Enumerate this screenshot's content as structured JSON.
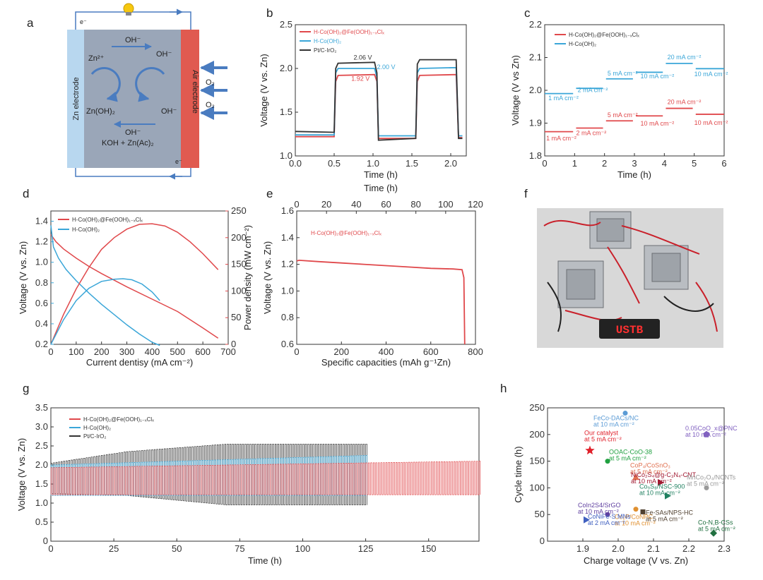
{
  "panels": {
    "a": "a",
    "b": "b",
    "c": "c",
    "d": "d",
    "e": "e",
    "f": "f",
    "g": "g",
    "h": "h"
  },
  "colors": {
    "red": "#e0484b",
    "blue": "#3aa6d8",
    "black": "#333333",
    "zn": "#b8d7ef",
    "air": "#e05a50",
    "electrolyte": "#9aa6b8",
    "arrow": "#4a7cc0"
  },
  "diagram": {
    "zn_electrode": "Zn electrode",
    "air_electrode": "Air electrode",
    "electron_top": "e⁻",
    "electron_bottom": "e⁻",
    "oh_top": "OH⁻",
    "oh_right_top": "OH⁻",
    "oh_right_bottom": "OH⁻",
    "oh_bottom": "OH⁻",
    "zn2": "Zn²⁺",
    "znoh2": "Zn(OH)₂",
    "electrolyte": "KOH + Zn(Ac)₂",
    "o2_top": "O₂",
    "o2_bottom": "O₂",
    "bulb_icon": "light-bulb-icon"
  },
  "photo": {
    "display_text": "USTB"
  },
  "chart_data": [
    {
      "panel": "b",
      "type": "line",
      "title": "",
      "xlabel": "Time (h)",
      "xlabel2": "Time (h)",
      "ylabel": "Voltage (V vs. Zn)",
      "xlim": [
        0,
        2.2
      ],
      "ylim": [
        1.0,
        2.5
      ],
      "xticks": [
        0.0,
        0.5,
        1.0,
        1.5,
        2.0
      ],
      "xticklabels": [
        "0.0",
        "0.5",
        "1.0",
        "1.5",
        "2.0"
      ],
      "yticks": [
        1.0,
        1.5,
        2.0,
        2.5
      ],
      "yticklabels": [
        "1.0",
        "1.5",
        "2.0",
        "2.5"
      ],
      "series": [
        {
          "name": "H-Co(OH)₂@Fe(OOH)₁₋ₓClₓ",
          "color": "#e0484b",
          "x": [
            0,
            0.5,
            0.52,
            0.55,
            1.02,
            1.05,
            1.07,
            1.55,
            1.57,
            1.6,
            2.07,
            2.1,
            2.15
          ],
          "y": [
            1.22,
            1.22,
            1.85,
            1.92,
            1.93,
            1.85,
            1.2,
            1.2,
            1.85,
            1.92,
            1.93,
            1.21,
            1.21
          ]
        },
        {
          "name": "H-Co(OH)₂",
          "color": "#3aa6d8",
          "x": [
            0,
            0.5,
            0.52,
            0.55,
            1.02,
            1.05,
            1.07,
            1.55,
            1.57,
            1.6,
            2.07,
            2.1,
            2.15
          ],
          "y": [
            1.24,
            1.24,
            1.95,
            2.0,
            2.0,
            1.9,
            1.23,
            1.23,
            1.95,
            2.0,
            2.01,
            1.23,
            1.23
          ]
        },
        {
          "name": "Pt/C-IrO₂",
          "color": "#333333",
          "x": [
            0,
            0.5,
            0.52,
            0.55,
            1.02,
            1.05,
            1.07,
            1.55,
            1.57,
            1.6,
            2.07,
            2.1,
            2.15
          ],
          "y": [
            1.28,
            1.27,
            2.0,
            2.06,
            2.07,
            1.95,
            1.18,
            1.2,
            2.05,
            2.1,
            2.1,
            1.2,
            1.2
          ]
        }
      ],
      "annotations": [
        {
          "text": "2.06 V",
          "x": 0.75,
          "y": 2.1,
          "color": "#333333"
        },
        {
          "text": "2.00 V",
          "x": 1.05,
          "y": 1.99,
          "color": "#3aa6d8"
        },
        {
          "text": "1.92 V",
          "x": 0.72,
          "y": 1.86,
          "color": "#e0484b"
        }
      ]
    },
    {
      "panel": "c",
      "type": "line",
      "xlabel": "Time (h)",
      "ylabel": "Voltage (V vs Zn)",
      "xlim": [
        0,
        6
      ],
      "ylim": [
        1.8,
        2.2
      ],
      "xticks": [
        0,
        1,
        2,
        3,
        4,
        5,
        6
      ],
      "xticklabels": [
        "0",
        "1",
        "2",
        "3",
        "4",
        "5",
        "6"
      ],
      "yticks": [
        1.8,
        1.9,
        2.0,
        2.1,
        2.2
      ],
      "yticklabels": [
        "1.8",
        "1.9",
        "2.0",
        "2.1",
        "2.2"
      ],
      "series": [
        {
          "name": "H-Co(OH)₂@Fe(OOH)₁₋ₓClₓ",
          "color": "#e0484b",
          "segments": [
            [
              0,
              0.95,
              1.874
            ],
            [
              1.05,
              1.95,
              1.885
            ],
            [
              2.05,
              2.95,
              1.907
            ],
            [
              3.05,
              3.95,
              1.922
            ],
            [
              4.05,
              4.95,
              1.945
            ],
            [
              5.05,
              6,
              1.927
            ]
          ]
        },
        {
          "name": "H-Co(OH)₂",
          "color": "#3aa6d8",
          "segments": [
            [
              0,
              0.95,
              1.99
            ],
            [
              1.05,
              1.95,
              2.006
            ],
            [
              2.05,
              2.95,
              2.035
            ],
            [
              3.05,
              3.95,
              2.055
            ],
            [
              4.05,
              4.95,
              2.082
            ],
            [
              5.05,
              6,
              2.066
            ]
          ]
        }
      ],
      "annotations": [
        {
          "text": "1 mA cm⁻²",
          "x": 0.12,
          "y": 1.97,
          "color": "#3aa6d8"
        },
        {
          "text": "2 mA cm⁻²",
          "x": 1.1,
          "y": 1.995,
          "color": "#3aa6d8"
        },
        {
          "text": "5 mA cm⁻²",
          "x": 2.1,
          "y": 2.045,
          "color": "#3aa6d8"
        },
        {
          "text": "10 mA cm⁻²",
          "x": 3.2,
          "y": 2.037,
          "color": "#3aa6d8"
        },
        {
          "text": "20 mA cm⁻²",
          "x": 4.1,
          "y": 2.095,
          "color": "#3aa6d8"
        },
        {
          "text": "10 mA cm⁻²",
          "x": 5.0,
          "y": 2.043,
          "color": "#3aa6d8"
        },
        {
          "text": "1 mA cm⁻²",
          "x": 0.05,
          "y": 1.847,
          "color": "#e0484b"
        },
        {
          "text": "2 mA cm⁻²",
          "x": 1.05,
          "y": 1.863,
          "color": "#e0484b"
        },
        {
          "text": "5 mA cm⁻²",
          "x": 2.1,
          "y": 1.918,
          "color": "#e0484b"
        },
        {
          "text": "10 mA cm⁻²",
          "x": 3.2,
          "y": 1.893,
          "color": "#e0484b"
        },
        {
          "text": "20 mA cm⁻²",
          "x": 4.1,
          "y": 1.958,
          "color": "#e0484b"
        },
        {
          "text": "10 mA cm⁻²",
          "x": 5.0,
          "y": 1.895,
          "color": "#e0484b"
        }
      ]
    },
    {
      "panel": "d",
      "type": "line",
      "xlabel": "Current dentisy (mA cm⁻²)",
      "ylabel": "Voltage (V vs. Zn)",
      "y2label": "Power density (mW cm⁻²)",
      "xlim": [
        0,
        700
      ],
      "ylim": [
        0.2,
        1.5
      ],
      "y2lim": [
        0,
        250
      ],
      "xticks": [
        0,
        100,
        200,
        300,
        400,
        500,
        600,
        700
      ],
      "xticklabels": [
        "0",
        "100",
        "200",
        "300",
        "400",
        "500",
        "600",
        "700"
      ],
      "yticks": [
        0.2,
        0.4,
        0.6,
        0.8,
        1.0,
        1.2,
        1.4
      ],
      "yticklabels": [
        "0.2",
        "0.4",
        "0.6",
        "0.8",
        "1.0",
        "1.2",
        "1.4"
      ],
      "y2ticks": [
        0,
        50,
        100,
        150,
        200,
        250
      ],
      "y2ticklabels": [
        "0",
        "50",
        "100",
        "150",
        "200",
        "250"
      ],
      "series": [
        {
          "name": "H-Co(OH)₂@Fe(OOH)₁₋ₓClₓ",
          "color": "#e0484b",
          "axis": "left",
          "x": [
            0,
            20,
            50,
            100,
            150,
            200,
            300,
            400,
            500,
            600,
            660
          ],
          "y": [
            1.27,
            1.2,
            1.13,
            1.04,
            0.96,
            0.89,
            0.76,
            0.64,
            0.52,
            0.36,
            0.26
          ]
        },
        {
          "name": "H-Co(OH)₂",
          "color": "#3aa6d8",
          "axis": "left",
          "x": [
            0,
            10,
            30,
            60,
            100,
            150,
            200,
            250,
            300,
            350,
            400,
            430
          ],
          "y": [
            1.36,
            1.15,
            1.04,
            0.93,
            0.82,
            0.7,
            0.59,
            0.49,
            0.39,
            0.3,
            0.22,
            0.19
          ]
        },
        {
          "name": "H-Co(OH)₂@Fe(OOH)₁₋ₓClₓ power",
          "color": "#e0484b",
          "axis": "right",
          "x": [
            0,
            50,
            100,
            150,
            200,
            250,
            300,
            350,
            400,
            450,
            500,
            550,
            600,
            660
          ],
          "y": [
            0,
            56,
            104,
            144,
            178,
            200,
            216,
            225,
            226,
            222,
            210,
            192,
            170,
            140
          ]
        },
        {
          "name": "H-Co(OH)₂ power",
          "color": "#3aa6d8",
          "axis": "right",
          "x": [
            0,
            50,
            100,
            150,
            200,
            250,
            285,
            320,
            360,
            400,
            430
          ],
          "y": [
            0,
            46,
            82,
            105,
            118,
            122,
            123,
            121,
            113,
            98,
            82
          ]
        }
      ]
    },
    {
      "panel": "e",
      "type": "line",
      "xlabel": "Specific capacities (mAh g⁻¹Zn)",
      "ylabel": "Voltage (V vs. Zn)",
      "xlim": [
        0,
        800
      ],
      "ylim": [
        0.6,
        1.6
      ],
      "xticks": [
        0,
        200,
        400,
        600,
        800
      ],
      "xticklabels": [
        "0",
        "200",
        "400",
        "600",
        "800"
      ],
      "x2lim": [
        0,
        120
      ],
      "x2ticks": [
        0,
        20,
        40,
        60,
        80,
        100,
        120
      ],
      "x2ticklabels": [
        "0",
        "20",
        "40",
        "60",
        "80",
        "100",
        "120"
      ],
      "yticks": [
        0.6,
        0.8,
        1.0,
        1.2,
        1.4,
        1.6
      ],
      "yticklabels": [
        "0.6",
        "0.8",
        "1.0",
        "1.2",
        "1.4",
        "1.6"
      ],
      "series": [
        {
          "name": "H-Co(OH)₂@Fe(OOH)₁₋ₓClₓ",
          "color": "#e0484b",
          "x": [
            0,
            10,
            100,
            200,
            300,
            400,
            500,
            600,
            700,
            740,
            748,
            752
          ],
          "y": [
            1.225,
            1.23,
            1.22,
            1.21,
            1.2,
            1.19,
            1.18,
            1.17,
            1.165,
            1.16,
            1.1,
            0.6
          ]
        }
      ]
    },
    {
      "panel": "g",
      "type": "line",
      "xlabel": "Time (h)",
      "ylabel": "Voltage (V vs. Zn)",
      "xlim": [
        0,
        170
      ],
      "ylim": [
        0,
        3.5
      ],
      "xticks": [
        0,
        25,
        50,
        75,
        100,
        125,
        150
      ],
      "xticklabels": [
        "0",
        "25",
        "50",
        "75",
        "100",
        "125",
        "150"
      ],
      "yticks": [
        0,
        0.5,
        1.0,
        1.5,
        2.0,
        2.5,
        3.0,
        3.5
      ],
      "yticklabels": [
        "0",
        "0.5",
        "1.0",
        "1.5",
        "2.0",
        "2.5",
        "3.0",
        "3.5"
      ],
      "series": [
        {
          "name": "H-Co(OH)₂@Fe(OOH)₁₋ₓClₓ",
          "color": "#e0484b",
          "xend": 170,
          "period": 1,
          "hi": [
            [
              0,
              1.93
            ],
            [
              170,
              2.1
            ]
          ],
          "lo": [
            [
              0,
              1.22
            ],
            [
              170,
              1.22
            ]
          ]
        },
        {
          "name": "H-Co(OH)₂",
          "color": "#3aa6d8",
          "xend": 125,
          "period": 1,
          "hi": [
            [
              0,
              2.0
            ],
            [
              125,
              2.25
            ]
          ],
          "lo": [
            [
              0,
              1.2
            ],
            [
              125,
              1.2
            ]
          ]
        },
        {
          "name": "Pt/C-IrO₂",
          "color": "#333333",
          "xend": 125,
          "period": 1,
          "hi": [
            [
              0,
              2.05
            ],
            [
              30,
              2.35
            ],
            [
              70,
              2.55
            ],
            [
              125,
              2.55
            ]
          ],
          "lo": [
            [
              0,
              1.25
            ],
            [
              30,
              1.2
            ],
            [
              70,
              0.95
            ],
            [
              125,
              0.95
            ]
          ]
        }
      ]
    },
    {
      "panel": "h",
      "type": "scatter",
      "xlabel": "Charge voltage (V vs. Zn)",
      "ylabel": "Cycle time (h)",
      "xlim": [
        1.8,
        2.3
      ],
      "ylim": [
        0,
        250
      ],
      "xticks": [
        1.9,
        2.0,
        2.1,
        2.2,
        2.3
      ],
      "xticklabels": [
        "1.9",
        "2.0",
        "2.1",
        "2.2",
        "2.3"
      ],
      "yticks": [
        0,
        50,
        100,
        150,
        200,
        250
      ],
      "yticklabels": [
        "0",
        "50",
        "100",
        "150",
        "200",
        "250"
      ],
      "points": [
        {
          "label": "Our catalyst at 5 mA cm⁻²",
          "x": 1.92,
          "y": 170,
          "color": "#e0202a",
          "marker": "star"
        },
        {
          "label": "FeCo-DACs/NC at 10 mA cm⁻²",
          "x": 2.02,
          "y": 240,
          "color": "#5b9bd5",
          "marker": "circle"
        },
        {
          "label": "OOAC-CoO-38 at 5 mA cm⁻²",
          "x": 1.97,
          "y": 150,
          "color": "#20a040",
          "marker": "circle"
        },
        {
          "label": "CoP₄/CoSnO₃ at 5 mA cm⁻²",
          "x": 2.05,
          "y": 120,
          "color": "#e07050",
          "marker": "triangle"
        },
        {
          "label": "0.05CoO_x@PNC at 10 mA cm⁻²",
          "x": 2.25,
          "y": 200,
          "color": "#8060c0",
          "marker": "pentagon"
        },
        {
          "label": "NiCo₂S₄@g-C₃N₄-CNT at 10 mA cm⁻²",
          "x": 2.12,
          "y": 110,
          "color": "#a01830",
          "marker": "triangle-right"
        },
        {
          "label": "Co₉S₈/NSC-900 at 10 mA cm⁻²",
          "x": 2.14,
          "y": 85,
          "color": "#208060",
          "marker": "triangle-right"
        },
        {
          "label": "MnCo₂O₄/NCNTs at 5 mA cm⁻²",
          "x": 2.25,
          "y": 100,
          "color": "#999999",
          "marker": "circle"
        },
        {
          "label": "CoIn2S4/SrGO at 10 mA cm⁻²",
          "x": 1.97,
          "y": 50,
          "color": "#6040a0",
          "marker": "circle"
        },
        {
          "label": "Co₂P/CoNPC at 10 mA cm⁻²",
          "x": 2.05,
          "y": 60,
          "color": "#e09030",
          "marker": "circle"
        },
        {
          "label": "Fe-SAs/NPS-HC at 5 mA cm⁻²",
          "x": 2.07,
          "y": 55,
          "color": "#504030",
          "marker": "square"
        },
        {
          "label": "CoNiFe-S MNs at 2 mA cm⁻²",
          "x": 1.91,
          "y": 40,
          "color": "#4060c0",
          "marker": "triangle-right"
        },
        {
          "label": "Co-N,B-CSs at 5 mA cm⁻²",
          "x": 2.27,
          "y": 15,
          "color": "#207040",
          "marker": "diamond"
        }
      ]
    }
  ],
  "texts": {
    "b": {
      "l0": "H-Co(OH)₂@Fe(OOH)₁₋ₓClₓ",
      "l1": "H-Co(OH)₂",
      "l2": "Pt/C-IrO₂",
      "xl": "Time (h)",
      "xl2": "Time (h)",
      "yl": "Voltage (V vs. Zn)",
      "a0": "2.06 V",
      "a1": "2.00 V",
      "a2": "1.92 V"
    },
    "c": {
      "l0": "H-Co(OH)₂@Fe(OOH)₁₋ₓClₓ",
      "l1": "H-Co(OH)₂",
      "xl": "Time (h)",
      "yl": "Voltage (V vs Zn)"
    },
    "d": {
      "l0": "H-Co(OH)₂@Fe(OOH)₁₋ₓClₓ",
      "l1": "H-Co(OH)₂",
      "xl": "Current dentisy (mA cm⁻²)",
      "yl": "Voltage (V vs. Zn)",
      "y2l": "Power density (mW cm⁻²)"
    },
    "e": {
      "l0": "H-Co(OH)₂@Fe(OOH)₁₋ₓClₓ",
      "xl": "Specific capacities (mAh g⁻¹Zn)",
      "yl": "Voltage (V vs. Zn)"
    },
    "g": {
      "l0": "H-Co(OH)₂@Fe(OOH)₁₋ₓClₓ",
      "l1": "H-Co(OH)₂",
      "l2": "Pt/C-IrO₂",
      "xl": "Time (h)",
      "yl": "Voltage (V vs. Zn)"
    },
    "h": {
      "xl": "Charge voltage (V vs. Zn)",
      "yl": "Cycle time (h)"
    }
  }
}
